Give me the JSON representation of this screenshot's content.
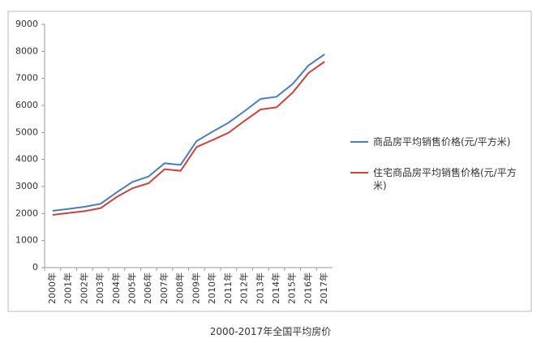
{
  "chart_data": {
    "type": "line",
    "caption": "2000-2017年全国平均房价",
    "categories": [
      "2000年",
      "2001年",
      "2002年",
      "2003年",
      "2004年",
      "2005年",
      "2006年",
      "2007年",
      "2008年",
      "2009年",
      "2010年",
      "2011年",
      "2012年",
      "2013年",
      "2014年",
      "2015年",
      "2016年",
      "2017年"
    ],
    "series": [
      {
        "name": "商品房平均销售价格(元/平方米)",
        "color": "#4a7ebb",
        "values": [
          2100,
          2170,
          2250,
          2360,
          2780,
          3170,
          3370,
          3860,
          3800,
          4680,
          5030,
          5360,
          5790,
          6240,
          6320,
          6790,
          7480,
          7890
        ]
      },
      {
        "name": "住宅商品房平均销售价格(元/平方米)",
        "color": "#d0413a",
        "values": [
          1950,
          2020,
          2090,
          2200,
          2610,
          2940,
          3120,
          3640,
          3580,
          4460,
          4720,
          4990,
          5430,
          5850,
          5930,
          6470,
          7200,
          7620
        ]
      }
    ],
    "ylim": [
      0,
      9000
    ],
    "yticks": [
      0,
      1000,
      2000,
      3000,
      4000,
      5000,
      6000,
      7000,
      8000,
      9000
    ],
    "grid": false
  }
}
